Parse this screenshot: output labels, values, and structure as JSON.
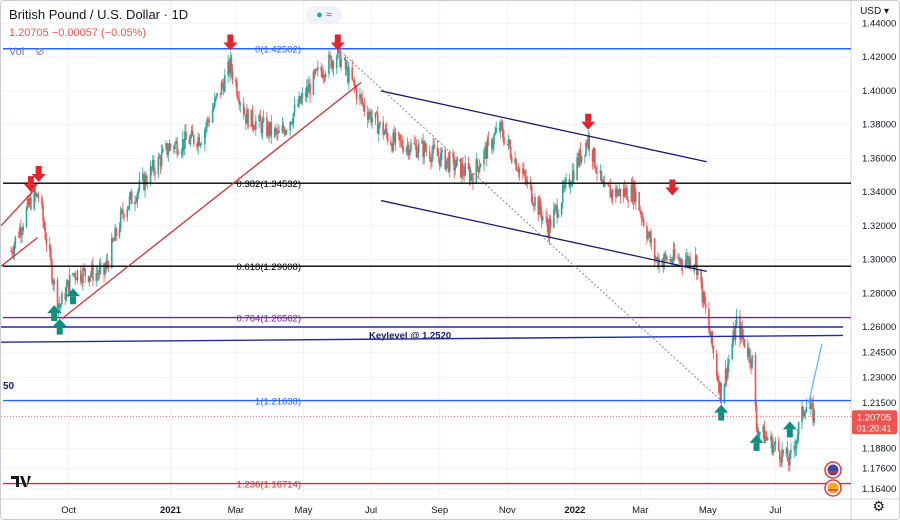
{
  "header": {
    "title": "British Pound / U.S. Dollar · 1D",
    "quote": "1.20705 −0.00057 (−0.05%)",
    "vol_label": "Vol",
    "currency": "USD"
  },
  "price_tag": {
    "value": "1.20705",
    "countdown": "01:20:41"
  },
  "left_edge_label": "50",
  "colors": {
    "up": "#26a69a",
    "down": "#ef5350",
    "arrow_down": "#e3242b",
    "arrow_up": "#108f80",
    "fib_blue": "#2962ff",
    "fib_black": "#000000",
    "channel": "#1a1a6e",
    "support": "#1f2aa8",
    "fib_red": "#d32f2f",
    "fib_purple": "#7b1fa2"
  },
  "chart_data": {
    "type": "candlestick",
    "ylim": [
      1.158,
      1.448
    ],
    "x_ticks": [
      "Oct",
      "2021",
      "Mar",
      "May",
      "Jul",
      "Sep",
      "Nov",
      "2022",
      "Mar",
      "May",
      "Jul"
    ],
    "x_tick_dates": [
      "2020-10-01",
      "2021-01-01",
      "2021-03-01",
      "2021-05-01",
      "2021-07-01",
      "2021-09-01",
      "2021-11-01",
      "2022-01-01",
      "2022-03-01",
      "2022-05-01",
      "2022-07-01"
    ],
    "y_ticks": [
      1.44,
      1.42,
      1.4,
      1.38,
      1.36,
      1.34,
      1.32,
      1.3,
      1.28,
      1.26,
      1.245,
      1.23,
      1.215,
      1.188,
      1.176,
      1.164
    ],
    "y_tick_labels": [
      "1.44000",
      "1.42000",
      "1.40000",
      "1.38000",
      "1.36000",
      "1.34000",
      "1.32000",
      "1.30000",
      "1.28000",
      "1.26000",
      "1.24500",
      "1.23000",
      "1.21500",
      "1.18800",
      "1.17600",
      "1.16400"
    ],
    "price_path": [
      [
        "2020-08-10",
        1.305
      ],
      [
        "2020-08-28",
        1.335
      ],
      [
        "2020-09-04",
        1.338
      ],
      [
        "2020-09-18",
        1.285
      ],
      [
        "2020-09-23",
        1.272
      ],
      [
        "2020-10-05",
        1.292
      ],
      [
        "2020-11-02",
        1.292
      ],
      [
        "2020-11-20",
        1.33
      ],
      [
        "2020-12-31",
        1.367
      ],
      [
        "2021-01-29",
        1.373
      ],
      [
        "2021-02-24",
        1.415
      ],
      [
        "2021-03-10",
        1.385
      ],
      [
        "2021-04-09",
        1.373
      ],
      [
        "2021-05-14",
        1.41
      ],
      [
        "2021-06-01",
        1.422
      ],
      [
        "2021-06-25",
        1.39
      ],
      [
        "2021-07-20",
        1.37
      ],
      [
        "2021-08-20",
        1.365
      ],
      [
        "2021-09-30",
        1.35
      ],
      [
        "2021-10-25",
        1.378
      ],
      [
        "2021-12-08",
        1.319
      ],
      [
        "2022-01-13",
        1.372
      ],
      [
        "2022-01-27",
        1.34
      ],
      [
        "2022-02-24",
        1.34
      ],
      [
        "2022-03-15",
        1.3
      ],
      [
        "2022-04-20",
        1.3
      ],
      [
        "2022-05-13",
        1.22
      ],
      [
        "2022-05-27",
        1.262
      ],
      [
        "2022-06-10",
        1.24
      ],
      [
        "2022-06-14",
        1.2
      ],
      [
        "2022-07-14",
        1.18
      ],
      [
        "2022-07-28",
        1.215
      ],
      [
        "2022-08-05",
        1.207
      ]
    ],
    "fib_levels": [
      {
        "label": "0(1.42502)",
        "value": 1.42502,
        "color": "#2962ff"
      },
      {
        "label": "0.382(1.34532)",
        "value": 1.34532,
        "color": "#000000"
      },
      {
        "label": "0.618(1.29608)",
        "value": 1.29608,
        "color": "#000000"
      },
      {
        "label": "0.764(1.26562)",
        "value": 1.26562,
        "color": "#7b1fa2"
      },
      {
        "label": "1(1.21638)",
        "value": 1.21638,
        "color": "#2962ff"
      },
      {
        "label": "1.236(1.16714)",
        "value": 1.16714,
        "color": "#d32f2f"
      }
    ],
    "key_level_label": "Keylevel @ 1.2520",
    "key_level_value": 1.252,
    "key_level_lines": [
      {
        "from": [
          "2020-08-01",
          1.26
        ],
        "to": [
          "2022-08-31",
          1.26
        ]
      },
      {
        "from": [
          "2020-08-01",
          1.251
        ],
        "to": [
          "2022-08-31",
          1.255
        ]
      }
    ],
    "trendlines": [
      {
        "role": "uptrend",
        "color": "#d32f2f",
        "from": [
          "2020-09-25",
          1.265
        ],
        "to": [
          "2021-06-22",
          1.405
        ]
      },
      {
        "role": "channel-top",
        "color": "#1a1a6e",
        "from": [
          "2021-07-10",
          1.4
        ],
        "to": [
          "2022-04-30",
          1.358
        ]
      },
      {
        "role": "channel-bottom",
        "color": "#1a1a6e",
        "from": [
          "2021-07-10",
          1.335
        ],
        "to": [
          "2022-04-30",
          1.293
        ]
      },
      {
        "role": "fib-anchor",
        "color": "#888888",
        "dashed": true,
        "from": [
          "2021-06-01",
          1.42502
        ],
        "to": [
          "2022-05-13",
          1.21638
        ]
      },
      {
        "role": "early-channel-top",
        "color": "#d32f2f",
        "from": [
          "2020-08-01",
          1.32
        ],
        "to": [
          "2020-09-01",
          1.342
        ]
      },
      {
        "role": "early-channel-bottom",
        "color": "#d32f2f",
        "from": [
          "2020-08-01",
          1.296
        ],
        "to": [
          "2020-09-03",
          1.313
        ]
      },
      {
        "role": "recent-rise",
        "color": "#64b5f6",
        "from": [
          "2022-07-31",
          1.215
        ],
        "to": [
          "2022-08-12",
          1.25
        ]
      }
    ],
    "arrows_down": [
      {
        "date": "2020-08-28",
        "value": 1.34
      },
      {
        "date": "2020-09-04",
        "value": 1.346
      },
      {
        "date": "2021-02-24",
        "value": 1.424
      },
      {
        "date": "2021-06-01",
        "value": 1.424
      },
      {
        "date": "2022-01-13",
        "value": 1.377
      },
      {
        "date": "2022-03-30",
        "value": 1.338
      }
    ],
    "arrows_up": [
      {
        "date": "2020-09-18",
        "value": 1.273
      },
      {
        "date": "2020-09-23",
        "value": 1.265
      },
      {
        "date": "2020-10-05",
        "value": 1.283
      },
      {
        "date": "2022-05-13",
        "value": 1.214
      },
      {
        "date": "2022-06-14",
        "value": 1.196
      },
      {
        "date": "2022-07-14",
        "value": 1.204
      }
    ],
    "grid": true
  }
}
